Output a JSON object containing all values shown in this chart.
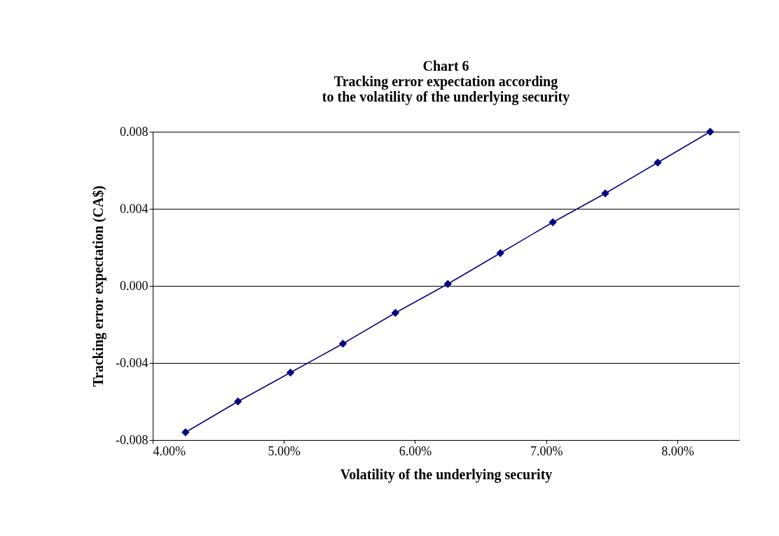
{
  "chart_data": {
    "type": "line",
    "title": "Chart 6\nTracking error expectation according\nto the volatility of the underlying security",
    "xlabel": "Volatility of the underlying security",
    "ylabel": "Tracking error expectation (CA$)",
    "x": [
      4.25,
      4.65,
      5.05,
      5.45,
      5.85,
      6.25,
      6.65,
      7.05,
      7.45,
      7.85,
      8.25
    ],
    "series": [
      {
        "color": "#000080",
        "values": [
          -0.0076,
          -0.006,
          -0.0045,
          -0.003,
          -0.0014,
          0.0001,
          0.0017,
          0.0033,
          0.0048,
          0.0064,
          0.008
        ]
      }
    ],
    "xlim": [
      4,
      8.47
    ],
    "xticks": [
      {
        "value": 4,
        "label": "4.00%"
      },
      {
        "value": 5,
        "label": "5.00%"
      },
      {
        "value": 6,
        "label": "6.00%"
      },
      {
        "value": 7,
        "label": "7.00%"
      },
      {
        "value": 8,
        "label": "8.00%"
      }
    ],
    "ylim": [
      -0.008,
      0.008
    ],
    "yticks": [
      {
        "value": -0.008,
        "label": "-0.008"
      },
      {
        "value": -0.004,
        "label": "-0.004"
      },
      {
        "value": 0,
        "label": "0.000"
      },
      {
        "value": 0.004,
        "label": "0.004"
      },
      {
        "value": 0.008,
        "label": "0.008"
      }
    ],
    "grid": "y",
    "marker": "diamond",
    "line_style": "solid"
  }
}
